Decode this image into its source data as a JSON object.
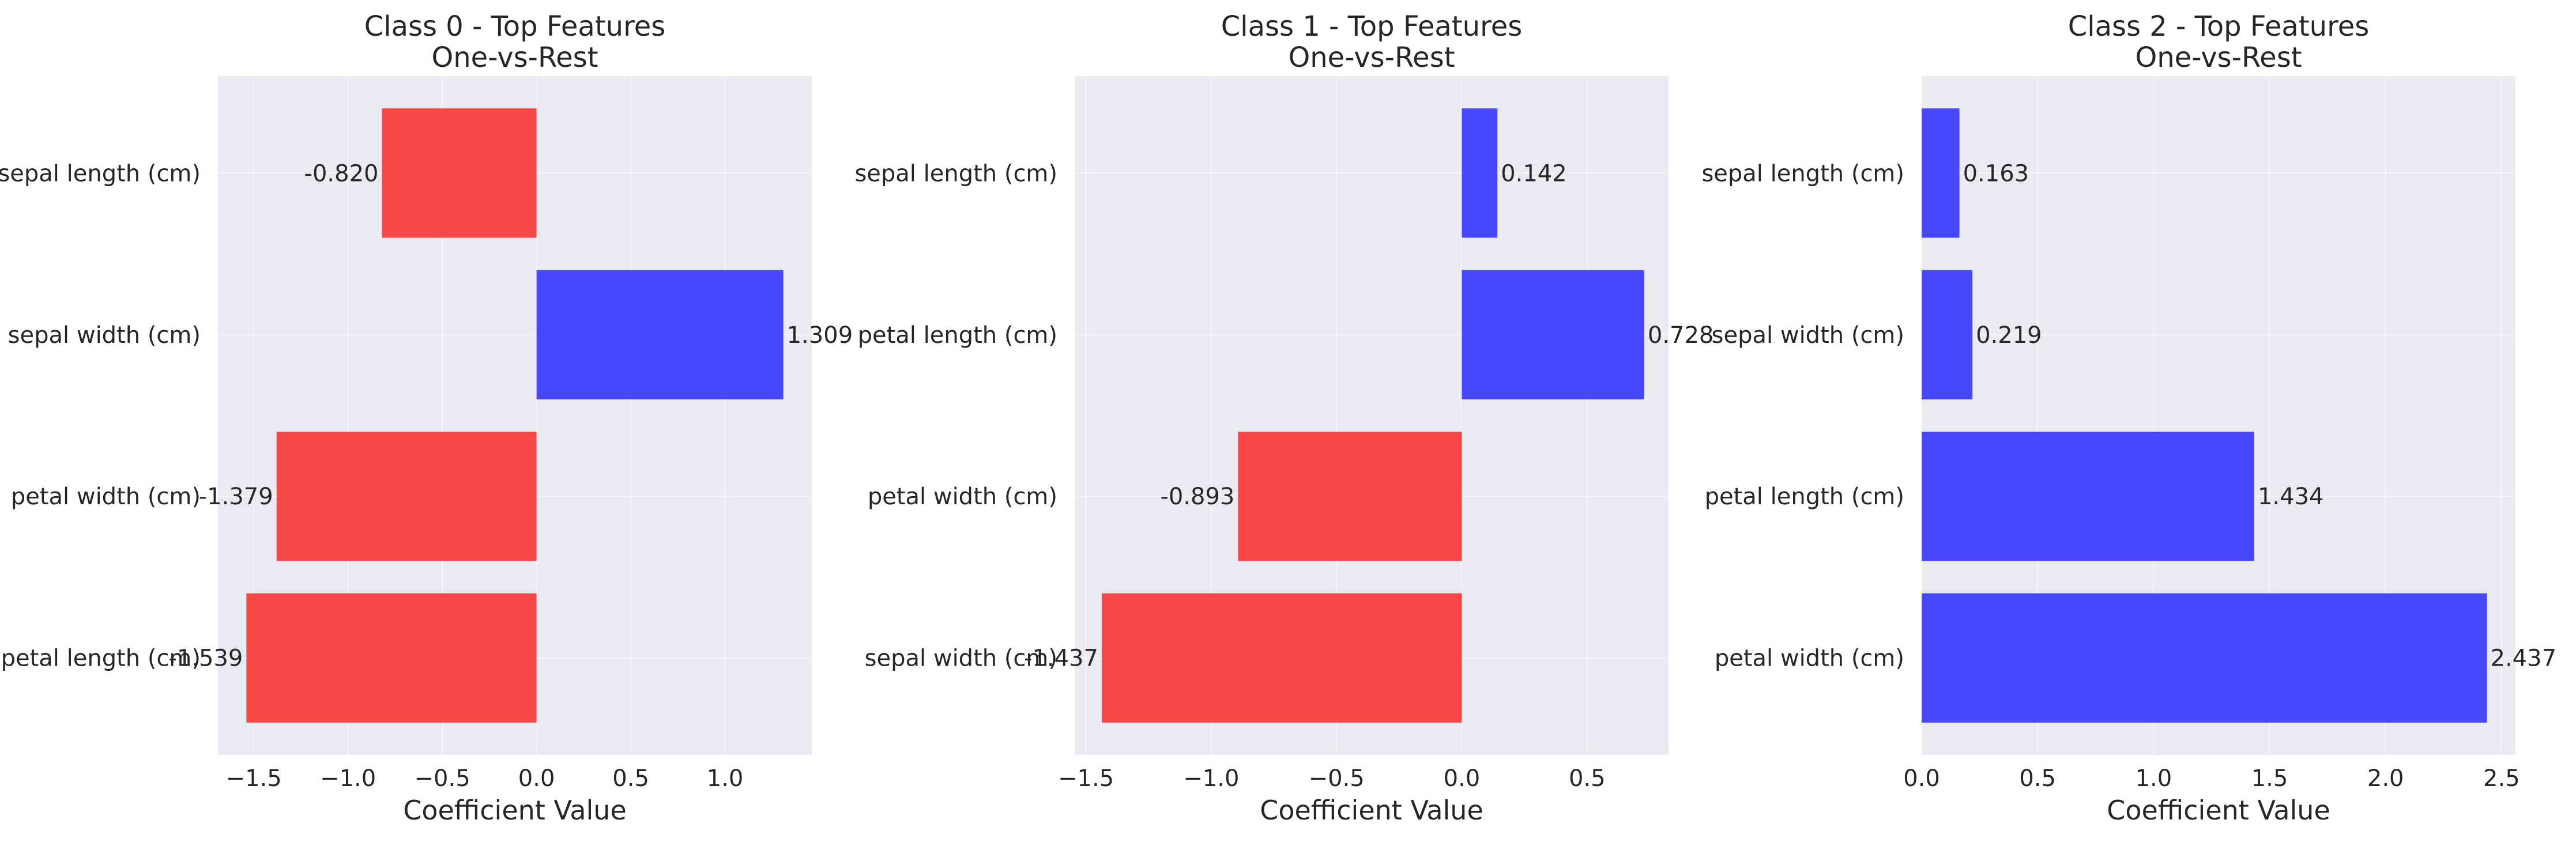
{
  "colors": {
    "positive": "#4747ff",
    "negative": "#f74747",
    "background": "#eaeaf2",
    "grid": "#ffffff"
  },
  "chart_data": [
    {
      "type": "bar",
      "orientation": "horizontal",
      "title": "Class 0 - Top Features",
      "subtitle": "One-vs-Rest",
      "xlabel": "Coefficient Value",
      "categories": [
        "sepal length (cm)",
        "sepal width (cm)",
        "petal width (cm)",
        "petal length (cm)"
      ],
      "values": [
        -0.82,
        1.309,
        -1.379,
        -1.539
      ],
      "value_labels": [
        "-0.820",
        "1.309",
        "-1.379",
        "-1.539"
      ],
      "xlim": [
        -1.69,
        1.46
      ],
      "xticks": [
        -1.5,
        -1.0,
        -0.5,
        0.0,
        0.5,
        1.0
      ],
      "xtick_labels": [
        "−1.5",
        "−1.0",
        "−0.5",
        "0.0",
        "0.5",
        "1.0"
      ],
      "grid": true
    },
    {
      "type": "bar",
      "orientation": "horizontal",
      "title": "Class 1 - Top Features",
      "subtitle": "One-vs-Rest",
      "xlabel": "Coefficient Value",
      "categories": [
        "sepal length (cm)",
        "petal length (cm)",
        "petal width (cm)",
        "sepal width (cm)"
      ],
      "values": [
        0.142,
        0.728,
        -0.893,
        -1.437
      ],
      "value_labels": [
        "0.142",
        "0.728",
        "-0.893",
        "-1.437"
      ],
      "xlim": [
        -1.545,
        0.825
      ],
      "xticks": [
        -1.5,
        -1.0,
        -0.5,
        0.0,
        0.5
      ],
      "xtick_labels": [
        "−1.5",
        "−1.0",
        "−0.5",
        "0.0",
        "0.5"
      ],
      "grid": true
    },
    {
      "type": "bar",
      "orientation": "horizontal",
      "title": "Class 2 - Top Features",
      "subtitle": "One-vs-Rest",
      "xlabel": "Coefficient Value",
      "categories": [
        "sepal length (cm)",
        "sepal width (cm)",
        "petal length (cm)",
        "petal width (cm)"
      ],
      "values": [
        0.163,
        0.219,
        1.434,
        2.437
      ],
      "value_labels": [
        "0.163",
        "0.219",
        "1.434",
        "2.437"
      ],
      "xlim": [
        0.0,
        2.56
      ],
      "xticks": [
        0.0,
        0.5,
        1.0,
        1.5,
        2.0,
        2.5
      ],
      "xtick_labels": [
        "0.0",
        "0.5",
        "1.0",
        "1.5",
        "2.0",
        "2.5"
      ],
      "grid": true
    }
  ]
}
